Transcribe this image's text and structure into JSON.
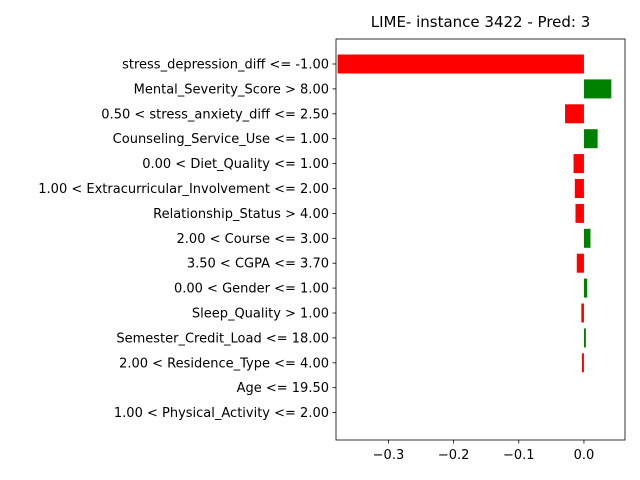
{
  "chart_data": {
    "type": "bar",
    "orientation": "horizontal",
    "title": "LIME- instance 3422 - Pred: 3",
    "xlabel": "",
    "ylabel": "",
    "xlim": [
      -0.3805,
      0.063
    ],
    "xticks": [
      -0.3,
      -0.2,
      -0.1,
      0.0
    ],
    "xtick_labels": [
      "−0.3",
      "−0.2",
      "−0.1",
      "0.0"
    ],
    "grid": false,
    "positive_color": "#008000",
    "negative_color": "#ff0000",
    "categories": [
      "stress_depression_diff <= -1.00",
      "Mental_Severity_Score > 8.00",
      "0.50 < stress_anxiety_diff <= 2.50",
      "Counseling_Service_Use <= 1.00",
      "0.00 < Diet_Quality <= 1.00",
      "1.00 < Extracurricular_Involvement <= 2.00",
      "Relationship_Status > 4.00",
      "2.00 < Course <= 3.00",
      "3.50 < CGPA <= 3.70",
      "0.00 < Gender <= 1.00",
      "Sleep_Quality > 1.00",
      "Semester_Credit_Load <= 18.00",
      "2.00 < Residence_Type <= 4.00",
      "Age <= 19.50",
      "1.00 < Physical_Activity <= 2.00"
    ],
    "values": [
      -0.378,
      0.042,
      -0.029,
      0.021,
      -0.016,
      -0.014,
      -0.013,
      0.01,
      -0.011,
      0.005,
      -0.004,
      0.003,
      -0.003,
      0.0,
      0.0
    ]
  }
}
